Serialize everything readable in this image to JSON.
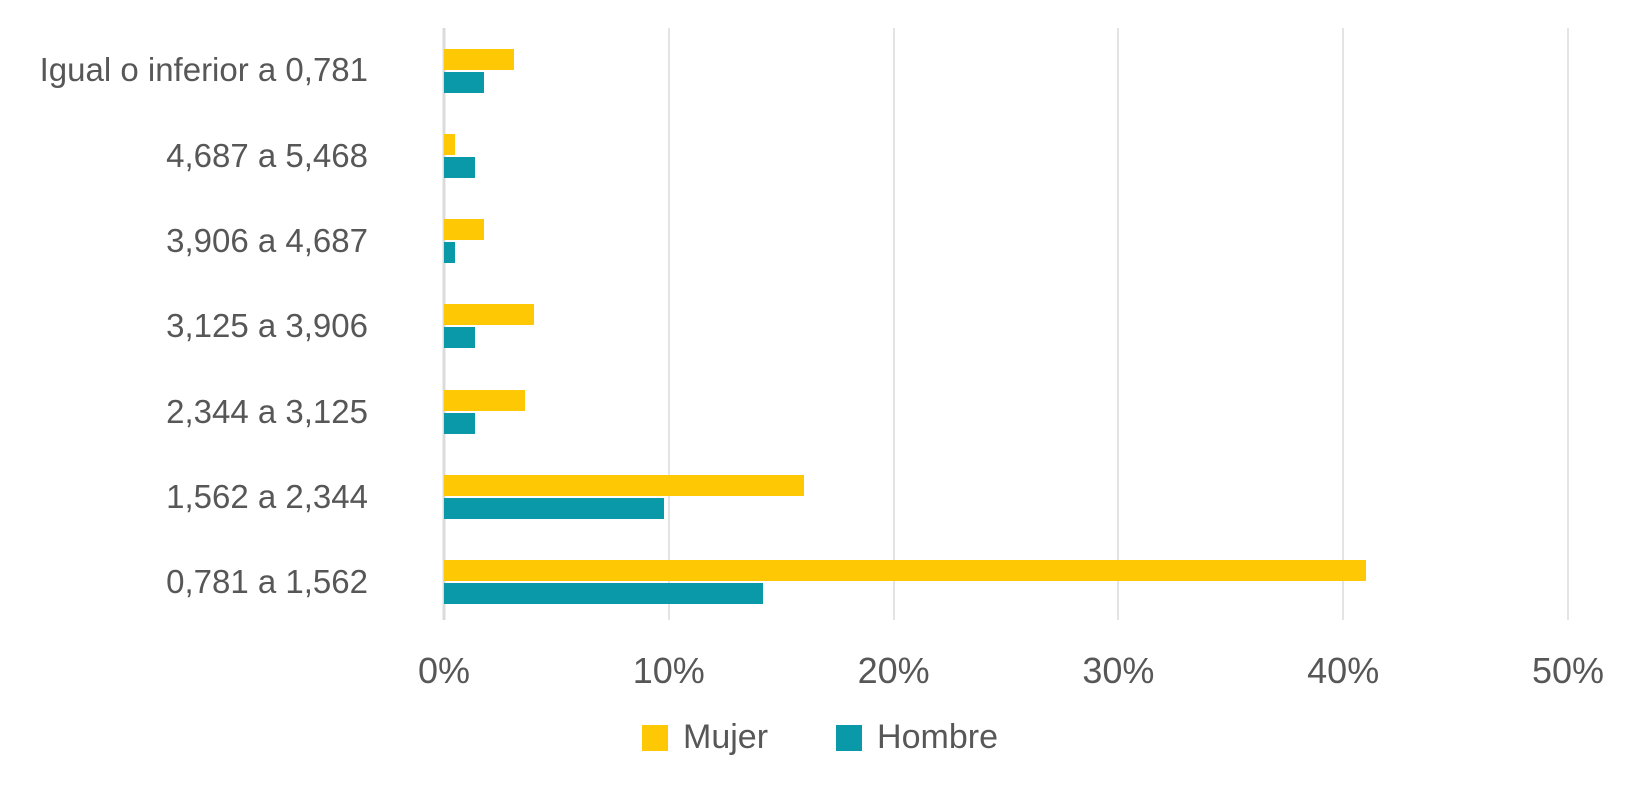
{
  "chart_data": {
    "type": "bar",
    "orientation": "horizontal",
    "title": "",
    "xlabel": "",
    "ylabel": "",
    "categories": [
      "Igual o inferior a 0,781",
      "4,687 a 5,468",
      "3,906 a 4,687",
      "3,125 a 3,906",
      "2,344 a 3,125",
      "1,562 a 2,344",
      "0,781 a 1,562"
    ],
    "series": [
      {
        "name": "Mujer",
        "color": "#FFC805",
        "values": [
          3.1,
          0.5,
          1.8,
          4.0,
          3.6,
          16.0,
          41.0
        ]
      },
      {
        "name": "Hombre",
        "color": "#0999A8",
        "values": [
          1.8,
          1.4,
          0.5,
          1.4,
          1.4,
          9.8,
          14.2
        ]
      }
    ],
    "xlim": [
      0,
      50
    ],
    "x_ticks": [
      {
        "value": 0,
        "label": "0%"
      },
      {
        "value": 10,
        "label": "10%"
      },
      {
        "value": 20,
        "label": "20%"
      },
      {
        "value": 30,
        "label": "30%"
      },
      {
        "value": 40,
        "label": "40%"
      },
      {
        "value": 50,
        "label": "50%"
      }
    ],
    "grid": true,
    "legend_position": "bottom",
    "unit": "%"
  },
  "legend": {
    "items": [
      {
        "label": "Mujer",
        "color": "#FFC805"
      },
      {
        "label": "Hombre",
        "color": "#0999A8"
      }
    ]
  },
  "style": {
    "background": "#FFFFFF",
    "text_color": "#575757",
    "gridline_color": "#E4E4E4",
    "axis_line_color": "#DBDBDB"
  }
}
